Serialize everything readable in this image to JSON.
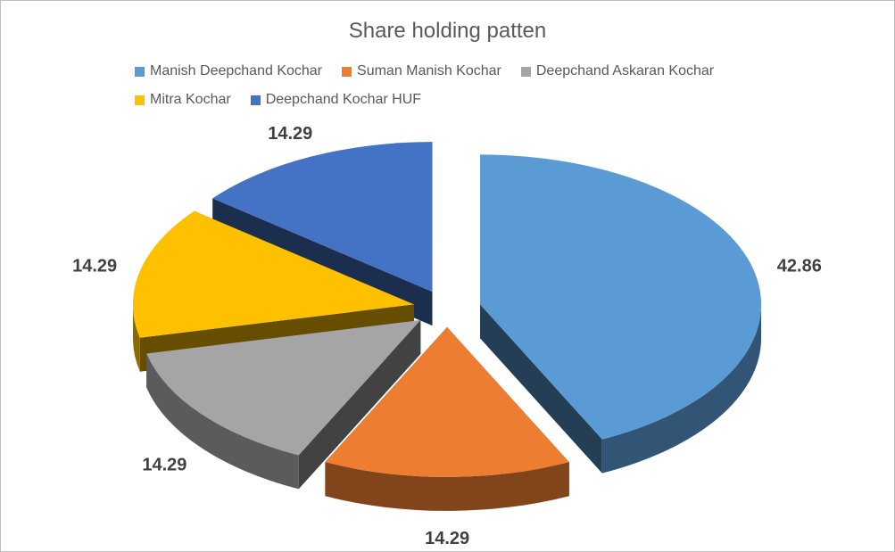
{
  "chart_data": {
    "type": "pie",
    "title": "Share holding patten",
    "categories": [
      "Manish Deepchand Kochar",
      "Suman Manish Kochar",
      "Deepchand Askaran Kochar",
      "Mitra Kochar",
      "Deepchand Kochar HUF"
    ],
    "values": [
      42.86,
      14.29,
      14.29,
      14.29,
      14.29
    ],
    "data_labels": [
      "42.86",
      "14.29",
      "14.29",
      "14.29",
      "14.29"
    ],
    "colors": [
      "#5B9BD5",
      "#ED7D31",
      "#A5A5A5",
      "#FFC000",
      "#4472C4"
    ],
    "style": "3d-exploded",
    "legend_placement": "top"
  }
}
